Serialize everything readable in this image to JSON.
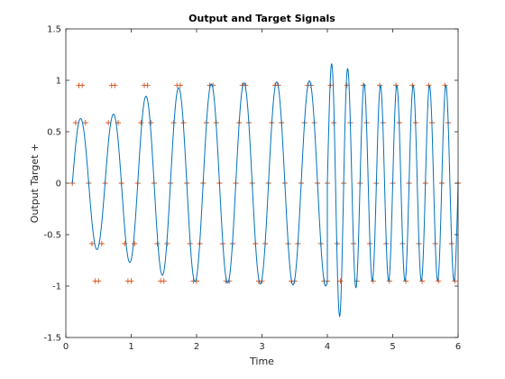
{
  "chart_data": {
    "type": "line",
    "title": "Output and Target Signals",
    "xlabel": "Time",
    "ylabel": "Output   Target +",
    "xlim": [
      0,
      6
    ],
    "ylim": [
      -1.5,
      1.5
    ],
    "xticks": [
      0,
      1,
      2,
      3,
      4,
      5,
      6
    ],
    "yticks": [
      -1.5,
      -1,
      -0.5,
      0,
      0.5,
      1,
      1.5
    ],
    "xtick_labels": [
      "0",
      "1",
      "2",
      "3",
      "4",
      "5",
      "6"
    ],
    "ytick_labels": [
      "-1.5",
      "-1",
      "-0.5",
      "0",
      "0.5",
      "1",
      "1.5"
    ],
    "grid": false,
    "legend": "none",
    "colors": {
      "output": "#0072BD",
      "target": "#D95319"
    },
    "series": [
      {
        "role": "output",
        "marker": "none",
        "segments": [
          {
            "t_start": 0.1,
            "t_end": 4.0,
            "frequency_hz": 2.0,
            "phase": 0.0,
            "envelope": [
              [
                0.1,
                0.62
              ],
              [
                0.7,
                0.66
              ],
              [
                1.1,
                0.82
              ],
              [
                1.5,
                0.9
              ],
              [
                2.0,
                0.96
              ],
              [
                3.0,
                0.98
              ],
              [
                4.0,
                1.0
              ]
            ]
          },
          {
            "t_start": 4.0,
            "t_end": 6.0,
            "frequency_hz": 4.0,
            "phase": 0.0,
            "envelope": [
              [
                4.0,
                1.0
              ],
              [
                4.1,
                1.25
              ],
              [
                4.2,
                1.3
              ],
              [
                4.35,
                1.05
              ],
              [
                4.6,
                0.95
              ],
              [
                6.0,
                0.95
              ]
            ]
          }
        ]
      },
      {
        "role": "target",
        "marker": "+",
        "segments": [
          {
            "t_start": 0.1,
            "t_end": 4.0,
            "frequency_hz": 2.0,
            "phase": 0.0,
            "sample_dt": 0.05
          },
          {
            "t_start": 4.0,
            "t_end": 6.0,
            "frequency_hz": 4.0,
            "phase": 0.0,
            "sample_dt": 0.05
          }
        ]
      }
    ]
  }
}
